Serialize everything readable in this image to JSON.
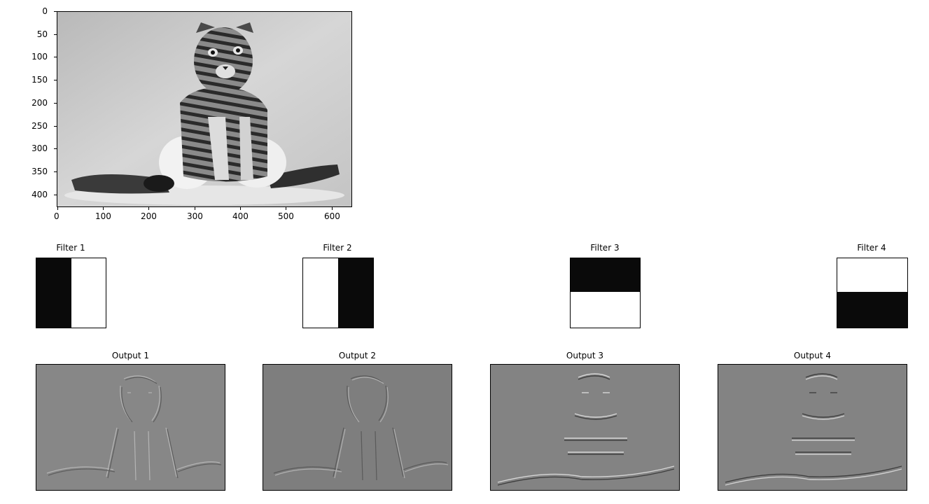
{
  "chart_data": [
    {
      "type": "image",
      "image": "grayscale-cat-photo",
      "x_ticks": [
        0,
        100,
        200,
        300,
        400,
        500,
        600
      ],
      "y_ticks": [
        0,
        50,
        100,
        150,
        200,
        250,
        300,
        350,
        400
      ],
      "xlim": [
        0,
        640
      ],
      "ylim": [
        427,
        0
      ]
    },
    {
      "type": "image-grid",
      "panels": [
        {
          "title": "Filter 1",
          "pattern": "left-black-right-white"
        },
        {
          "title": "Filter 2",
          "pattern": "left-white-right-black"
        },
        {
          "title": "Filter 3",
          "pattern": "top-black-bottom-white"
        },
        {
          "title": "Filter 4",
          "pattern": "top-white-bottom-black"
        }
      ]
    },
    {
      "type": "image-grid",
      "panels": [
        {
          "title": "Output 1",
          "image": "vertical-edge-response"
        },
        {
          "title": "Output 2",
          "image": "vertical-edge-response-inverted"
        },
        {
          "title": "Output 3",
          "image": "horizontal-edge-response"
        },
        {
          "title": "Output 4",
          "image": "horizontal-edge-response-inverted"
        }
      ]
    }
  ],
  "colors": {
    "black": "#0a0a0a",
    "white": "#ffffff",
    "mid_gray": "#858585"
  }
}
